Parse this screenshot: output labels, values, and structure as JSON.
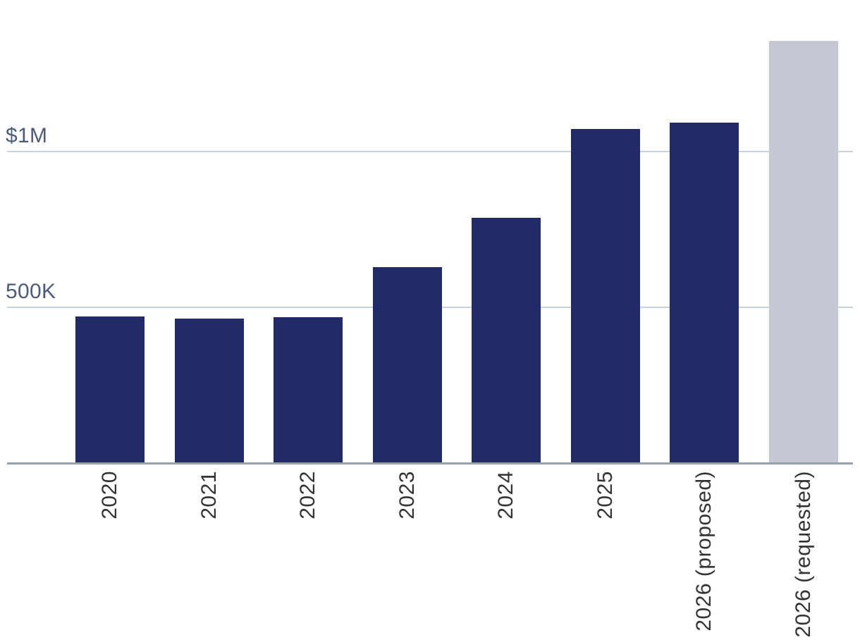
{
  "chart_data": {
    "type": "bar",
    "title": "",
    "categories": [
      "2020",
      "2021",
      "2022",
      "2023",
      "2024",
      "2025",
      "2026 (proposed)",
      "2026 (requested)"
    ],
    "values_usd": [
      470000,
      462000,
      466000,
      627000,
      787000,
      1072000,
      1093000,
      1356000
    ],
    "unit": "USD",
    "xlabel": "",
    "ylabel": "",
    "ylim": [
      0,
      1500000
    ],
    "grid": "horizontal",
    "legend": "none",
    "y_ticks": [
      {
        "label": "500K",
        "value": 500000
      },
      {
        "label": "$1M",
        "value": 1000000
      }
    ],
    "bar_colors": [
      "#222a68",
      "#222a68",
      "#222a68",
      "#222a68",
      "#222a68",
      "#222a68",
      "#222a68",
      "#c5c7d3"
    ],
    "colors": {
      "bar_primary": "#222a68",
      "bar_highlight": "#c5c7d3",
      "gridline": "#c8d1df",
      "axis_line": "#97a1ae",
      "y_tick_text": "#4d5b79",
      "x_tick_text": "#333333",
      "background": "#ffffff"
    }
  }
}
